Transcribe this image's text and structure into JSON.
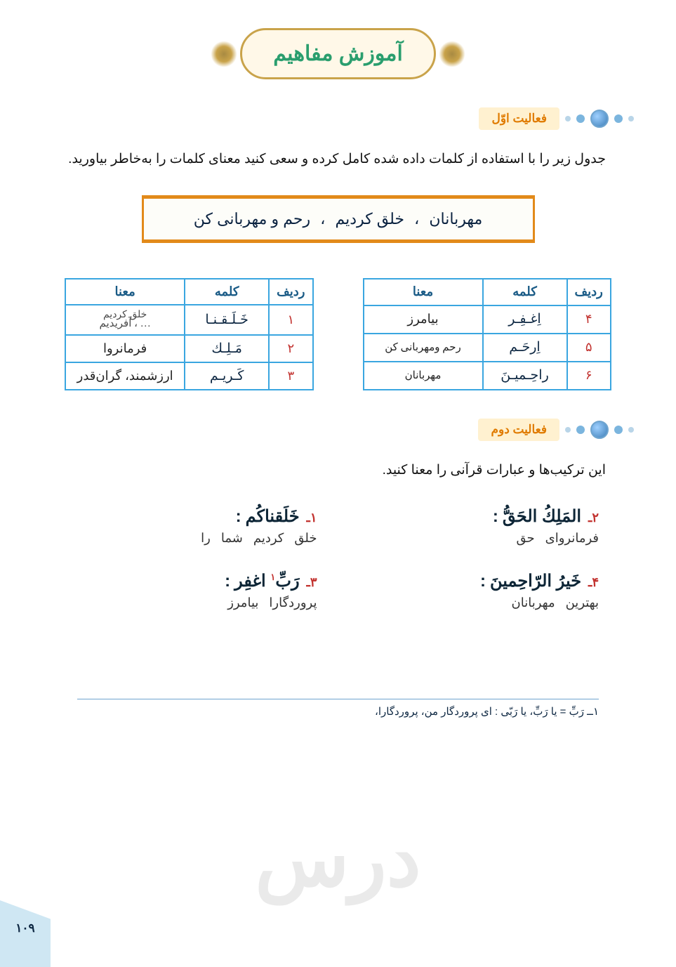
{
  "header": {
    "title": "آموزش مفاهیم"
  },
  "activity1": {
    "label": "فعالیت اوّل",
    "instruction": "جدول زیر را با استفاده از کلمات داده شده کامل کرده و سعی کنید معنای کلمات را به‌خاطر بیاورید.",
    "word_bank": [
      "مهربانان",
      "خلق کردیم",
      "رحم و مهربانی کن"
    ]
  },
  "tables": {
    "headers": {
      "row": "ردیف",
      "word": "كلمه",
      "meaning": "معنا"
    },
    "right": [
      {
        "idx": "۱",
        "word": "خَـلَـقـنـا",
        "meaning_top": "خلق کردیم",
        "meaning_main": "… ، آفریدیم"
      },
      {
        "idx": "۲",
        "word": "مَـلِـك",
        "meaning_top": "",
        "meaning_main": "فرمانروا"
      },
      {
        "idx": "۳",
        "word": "كَـريـم",
        "meaning_top": "",
        "meaning_main": "ارزشمند، گران‌قدر"
      }
    ],
    "left": [
      {
        "idx": "۴",
        "word": "اِغـفِـر",
        "meaning_top": "",
        "meaning_main": "بیامرز"
      },
      {
        "idx": "۵",
        "word": "اِرحَـم",
        "meaning_top": "",
        "meaning_main": "رحم ومهربانی کن"
      },
      {
        "idx": "۶",
        "word": "راحِـمیـنَ",
        "meaning_top": "",
        "meaning_main": "مهربانان"
      }
    ]
  },
  "activity2": {
    "label": "فعالیت دوم",
    "instruction": "این ترکیب‌ها و عبارات قرآنی را معنا کنید.",
    "phrases_right": [
      {
        "num": "۱ـ",
        "arabic": "خَلَقناکُم",
        "fa": [
          "خلق",
          "کردیم",
          "شما",
          "را"
        ],
        "sup": ""
      },
      {
        "num": "۳ـ",
        "arabic": "رَبِّ اغفِر",
        "fa": [
          "پروردگارا",
          "بیامرز"
        ],
        "sup": "۱"
      }
    ],
    "phrases_left": [
      {
        "num": "۲ـ",
        "arabic": "المَلِكُ الحَقُّ",
        "fa": [
          "فرمانروای",
          "حق"
        ],
        "sup": ""
      },
      {
        "num": "۴ـ",
        "arabic": "خَیرُ الرّاحِمینَ",
        "fa": [
          "بهترین",
          "مهربانان"
        ],
        "sup": ""
      }
    ]
  },
  "footnote": "۱ــ رَبِّ = یا رَبِّ، یا رَبّی : ای پروردگار من، پروردگارا،",
  "page_number": "۱۰۹",
  "colors": {
    "header_title": "#2a9e6e",
    "header_frame_bg": "#fff8e8",
    "header_frame_border": "#c9a34a",
    "activity_bg": "#fff1d0",
    "activity_text": "#e07b00",
    "table_border": "#3aa6e0",
    "table_header": "#1a5b86",
    "idx_color": "#c2322f",
    "wordbank_border": "#e28a1a",
    "corner_bg": "#cfe7f3"
  }
}
